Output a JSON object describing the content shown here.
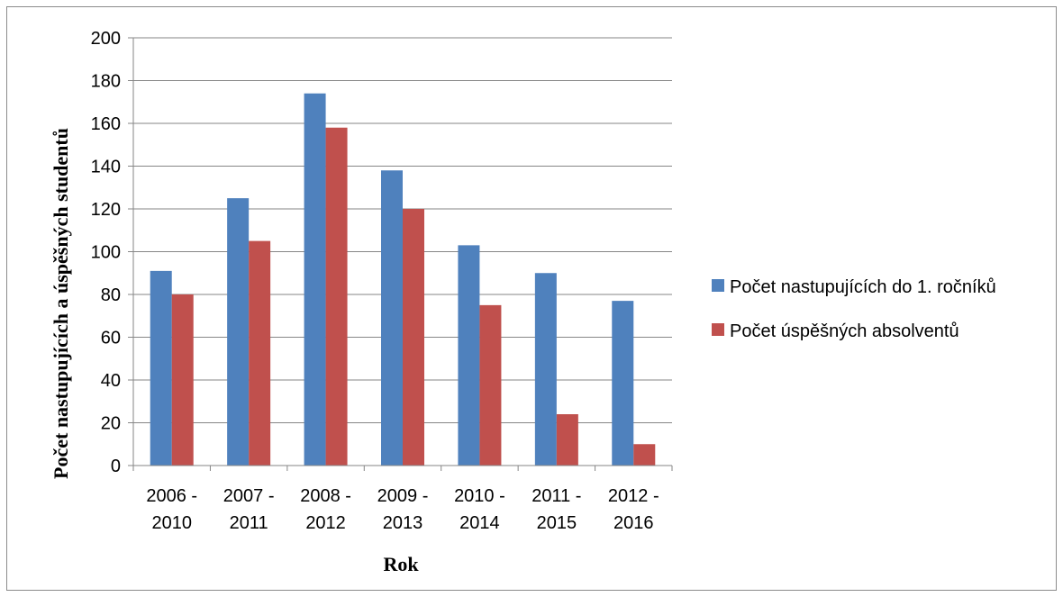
{
  "chart_data": {
    "type": "bar",
    "categories": [
      [
        "2006 -",
        "2010"
      ],
      [
        "2007 -",
        "2011"
      ],
      [
        "2008 -",
        "2012"
      ],
      [
        "2009 -",
        "2013"
      ],
      [
        "2010 -",
        "2014"
      ],
      [
        "2011 -",
        "2015"
      ],
      [
        "2012 -",
        "2016"
      ]
    ],
    "series": [
      {
        "name": "Počet nastupujících do 1. ročníků",
        "color": "#4f81bd",
        "values": [
          91,
          125,
          174,
          138,
          103,
          90,
          77
        ]
      },
      {
        "name": "Počet úspěšných absolventů",
        "color": "#c0504d",
        "values": [
          80,
          105,
          158,
          120,
          75,
          24,
          10
        ]
      }
    ],
    "xlabel": "Rok",
    "ylabel": "Počet nastupujících a úspěšných studentů",
    "ylim": [
      0,
      200
    ],
    "ytick_step": 20,
    "grid": true,
    "legend_position": "right"
  }
}
